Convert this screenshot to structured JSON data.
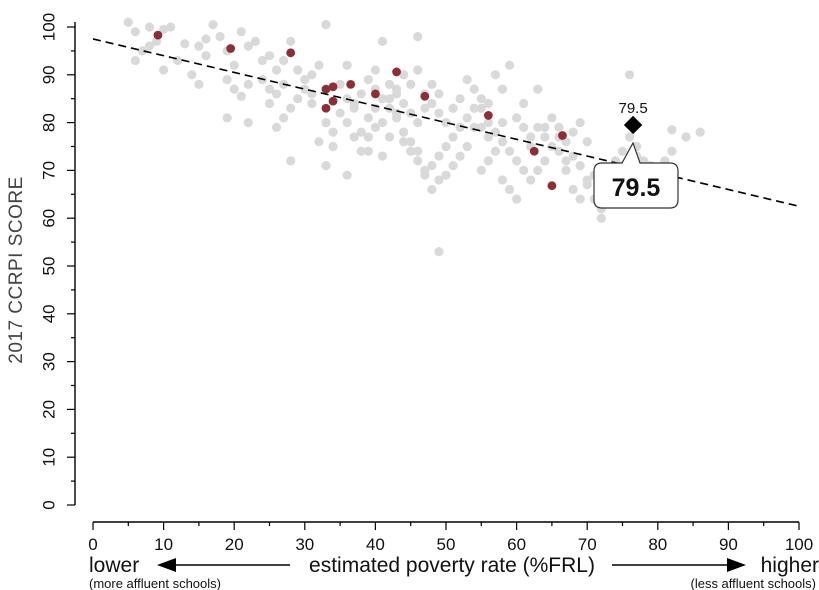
{
  "chart_data": {
    "type": "scatter",
    "ylabel": "2017 CCRPI SCORE",
    "xlabel": "estimated poverty rate (%FRL)",
    "xlim": [
      0,
      100
    ],
    "ylim": [
      0,
      100
    ],
    "x_ticks": [
      0,
      10,
      20,
      30,
      40,
      50,
      60,
      70,
      80,
      90,
      100
    ],
    "y_ticks": [
      0,
      10,
      20,
      30,
      40,
      50,
      60,
      70,
      80,
      90,
      100
    ],
    "x_low_label": "lower",
    "x_high_label": "higher",
    "x_low_sublabel": "(more affluent schools)",
    "x_high_sublabel": "(less affluent schools)",
    "grid": false,
    "colors": {
      "all_schools": "#d9d9d9",
      "highlighted": "#8b2e35",
      "selected": "#000000",
      "trend": "#000000"
    },
    "trend_line": {
      "x": [
        0,
        100
      ],
      "y": [
        97.5,
        62.5
      ]
    },
    "selected_point": {
      "x": 76.5,
      "y": 79.5,
      "label": "79.5",
      "callout": "79.5"
    },
    "series": [
      {
        "role": "all_schools",
        "points": [
          [
            5,
            101
          ],
          [
            6,
            99
          ],
          [
            8,
            100
          ],
          [
            10,
            99.5
          ],
          [
            11,
            100
          ],
          [
            13,
            96.5
          ],
          [
            12,
            93
          ],
          [
            10,
            91
          ],
          [
            9,
            97
          ],
          [
            8,
            96
          ],
          [
            7,
            95
          ],
          [
            6,
            93
          ],
          [
            15,
            96
          ],
          [
            16,
            97.5
          ],
          [
            17,
            100.5
          ],
          [
            18,
            98
          ],
          [
            19,
            95
          ],
          [
            20,
            92
          ],
          [
            21,
            99
          ],
          [
            22,
            96
          ],
          [
            23,
            97
          ],
          [
            24,
            93
          ],
          [
            25,
            94
          ],
          [
            26,
            91
          ],
          [
            27,
            93
          ],
          [
            28,
            97
          ],
          [
            14,
            90
          ],
          [
            15,
            88
          ],
          [
            16,
            94
          ],
          [
            19,
            89
          ],
          [
            20,
            87
          ],
          [
            21,
            85.5
          ],
          [
            22,
            88
          ],
          [
            24,
            89
          ],
          [
            25,
            87
          ],
          [
            26,
            86
          ],
          [
            27,
            88
          ],
          [
            29,
            91
          ],
          [
            30,
            89
          ],
          [
            31,
            90
          ],
          [
            32,
            92
          ],
          [
            29,
            85
          ],
          [
            30,
            87
          ],
          [
            31,
            86
          ],
          [
            28,
            83
          ],
          [
            27,
            81
          ],
          [
            19,
            81
          ],
          [
            22,
            80
          ],
          [
            25,
            84
          ],
          [
            26,
            79
          ],
          [
            28,
            72
          ],
          [
            33,
            71
          ],
          [
            36,
            69
          ],
          [
            38,
            74
          ],
          [
            39,
            77
          ],
          [
            40,
            83
          ],
          [
            41,
            80
          ],
          [
            42,
            85
          ],
          [
            43,
            87
          ],
          [
            44,
            90
          ],
          [
            45,
            88
          ],
          [
            46,
            91
          ],
          [
            47,
            86
          ],
          [
            48,
            84
          ],
          [
            49,
            82
          ],
          [
            50,
            80
          ],
          [
            41,
            97
          ],
          [
            46,
            98
          ],
          [
            33,
            100.5
          ],
          [
            35,
            88
          ],
          [
            37,
            84
          ],
          [
            36,
            80
          ],
          [
            38,
            78
          ],
          [
            39,
            81
          ],
          [
            40,
            79
          ],
          [
            42,
            77
          ],
          [
            43,
            82
          ],
          [
            44,
            76
          ],
          [
            45,
            74
          ],
          [
            46,
            72
          ],
          [
            47,
            69
          ],
          [
            48,
            71
          ],
          [
            49,
            73
          ],
          [
            50,
            75
          ],
          [
            51,
            77
          ],
          [
            52,
            79
          ],
          [
            53,
            81
          ],
          [
            54,
            83
          ],
          [
            55,
            85
          ],
          [
            56,
            80
          ],
          [
            57,
            78
          ],
          [
            58,
            76
          ],
          [
            59,
            74
          ],
          [
            60,
            72
          ],
          [
            61,
            70
          ],
          [
            62,
            75
          ],
          [
            63,
            79
          ],
          [
            64,
            77
          ],
          [
            65,
            81
          ],
          [
            66,
            79
          ],
          [
            67,
            76
          ],
          [
            68,
            73
          ],
          [
            69,
            71
          ],
          [
            70,
            68
          ],
          [
            71,
            64
          ],
          [
            72,
            62
          ],
          [
            72,
            60
          ],
          [
            73,
            66
          ],
          [
            74,
            72
          ],
          [
            75,
            74
          ],
          [
            76,
            77
          ],
          [
            77,
            73
          ],
          [
            78,
            69
          ],
          [
            79,
            71
          ],
          [
            80,
            68
          ],
          [
            81,
            72
          ],
          [
            82,
            74
          ],
          [
            84,
            77
          ],
          [
            86,
            78
          ],
          [
            82,
            78.5
          ],
          [
            76,
            90
          ],
          [
            57,
            90
          ],
          [
            58,
            87
          ],
          [
            59,
            92
          ],
          [
            61,
            84
          ],
          [
            63,
            87
          ],
          [
            55,
            83
          ],
          [
            54,
            79
          ],
          [
            53,
            75
          ],
          [
            52,
            73
          ],
          [
            51,
            71
          ],
          [
            50,
            69
          ],
          [
            49,
            68
          ],
          [
            48,
            66
          ],
          [
            47,
            70
          ],
          [
            46,
            74
          ],
          [
            45,
            76
          ],
          [
            44,
            78
          ],
          [
            43,
            81
          ],
          [
            42,
            83
          ],
          [
            41,
            85
          ],
          [
            40,
            87
          ],
          [
            39,
            89
          ],
          [
            38,
            86
          ],
          [
            37,
            83
          ],
          [
            36,
            85
          ],
          [
            35,
            82
          ],
          [
            34,
            78
          ],
          [
            33,
            80
          ],
          [
            32,
            76
          ],
          [
            31,
            84
          ],
          [
            49,
            53
          ],
          [
            55,
            70
          ],
          [
            56,
            72
          ],
          [
            57,
            74
          ],
          [
            58,
            68
          ],
          [
            59,
            66
          ],
          [
            60,
            64
          ],
          [
            62,
            68
          ],
          [
            63,
            70
          ],
          [
            64,
            72
          ],
          [
            65,
            75
          ],
          [
            66,
            77
          ],
          [
            67,
            70
          ],
          [
            68,
            66
          ],
          [
            69,
            64
          ],
          [
            70,
            67
          ],
          [
            71,
            69
          ],
          [
            54,
            87
          ],
          [
            53,
            89
          ],
          [
            52,
            85
          ],
          [
            51,
            83
          ],
          [
            49,
            86
          ],
          [
            48,
            88
          ],
          [
            47,
            83
          ],
          [
            46,
            80
          ],
          [
            45,
            82
          ],
          [
            44,
            84
          ],
          [
            43,
            86
          ],
          [
            42,
            88
          ],
          [
            55,
            79
          ],
          [
            56,
            77
          ],
          [
            60,
            81
          ],
          [
            61,
            79
          ],
          [
            62,
            77
          ],
          [
            64,
            79
          ],
          [
            66,
            74
          ],
          [
            67,
            72
          ],
          [
            68,
            78
          ],
          [
            69,
            80
          ],
          [
            70,
            76
          ],
          [
            73,
            70
          ],
          [
            74,
            68
          ],
          [
            75,
            71
          ],
          [
            77,
            75
          ],
          [
            78,
            72
          ],
          [
            36,
            92
          ],
          [
            40,
            91
          ],
          [
            34,
            75
          ],
          [
            37,
            77
          ],
          [
            39,
            74
          ],
          [
            41,
            73
          ],
          [
            56,
            84
          ],
          [
            58,
            80
          ]
        ]
      },
      {
        "role": "highlighted",
        "points": [
          [
            9.2,
            98.3
          ],
          [
            19.5,
            95.5
          ],
          [
            28,
            94.6
          ],
          [
            33,
            87
          ],
          [
            33,
            83
          ],
          [
            34,
            87.5
          ],
          [
            34,
            84.5
          ],
          [
            36.5,
            88
          ],
          [
            40,
            86
          ],
          [
            43,
            90.6
          ],
          [
            47,
            85.5
          ],
          [
            56,
            81.5
          ],
          [
            62.5,
            74
          ],
          [
            65,
            66.8
          ],
          [
            66.5,
            77.3
          ]
        ]
      }
    ]
  }
}
